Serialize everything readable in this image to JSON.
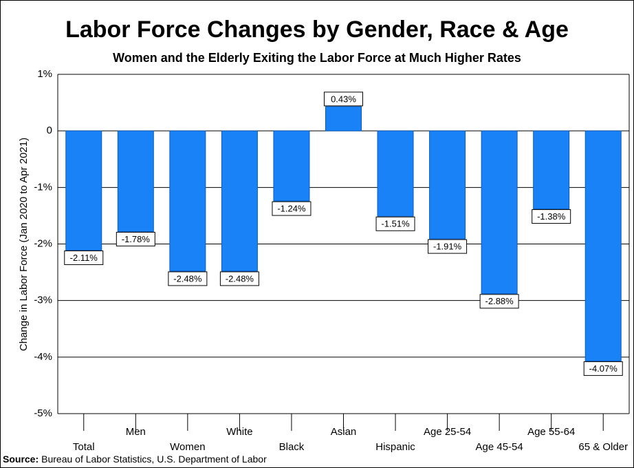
{
  "chart_data": {
    "type": "bar",
    "title": "Labor Force Changes by Gender, Race & Age",
    "subtitle": "Women and the Elderly Exiting the Labor Force at Much Higher Rates",
    "y_label": "Change in Labor Force (Jan 2020 to Apr 2021)",
    "categories": [
      "Total",
      "Men",
      "Women",
      "White",
      "Black",
      "Asian",
      "Hispanic",
      "Age 25-54",
      "Age 45-54",
      "Age 55-64",
      "65 & Older"
    ],
    "values": [
      -2.11,
      -1.78,
      -2.48,
      -2.48,
      -1.24,
      0.43,
      -1.51,
      -1.91,
      -2.88,
      -1.38,
      -4.07
    ],
    "value_labels": [
      "-2.11%",
      "-1.78%",
      "-2.48%",
      "-2.48%",
      "-1.24%",
      "0.43%",
      "-1.51%",
      "-1.91%",
      "-2.88%",
      "-1.38%",
      "-4.07%"
    ],
    "color": "#1a82f7",
    "ylim": [
      -5,
      1
    ],
    "yticks": [
      {
        "value": 1,
        "label": "1%"
      },
      0,
      {
        "value": -1,
        "label": "-1%"
      },
      {
        "value": -2,
        "label": "-2%"
      },
      {
        "value": -3,
        "label": "-3%"
      },
      {
        "value": -4,
        "label": "-4%"
      },
      {
        "value": -5,
        "label": "-5%"
      }
    ],
    "grid": true,
    "source": {
      "label": "Source:",
      "text": "Bureau of Labor Statistics, U.S. Department of Labor"
    }
  }
}
